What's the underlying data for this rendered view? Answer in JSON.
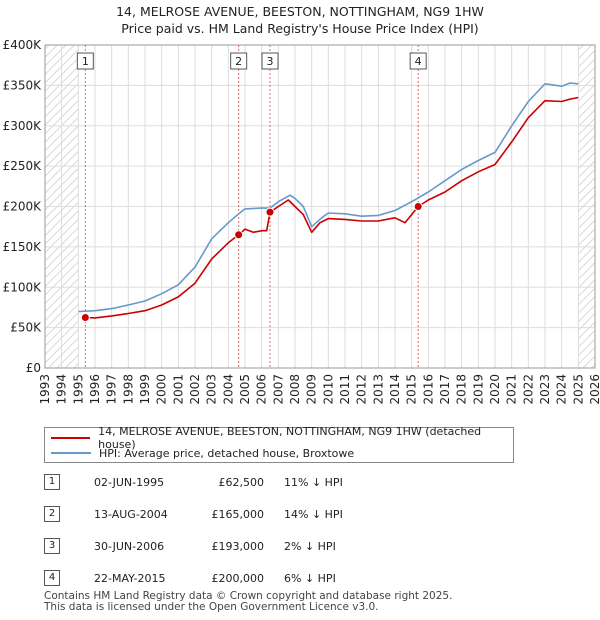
{
  "title_line1": "14, MELROSE AVENUE, BEESTON, NOTTINGHAM, NG9 1HW",
  "title_line2": "Price paid vs. HM Land Registry's House Price Index (HPI)",
  "colors": {
    "price": "#cc0000",
    "hpi": "#6699cc",
    "shade": "#dde6f2",
    "grid": "#dddddd",
    "marker_line": "#dd6666"
  },
  "chart_data": {
    "type": "line",
    "xlim": [
      1993,
      2026
    ],
    "ylim": [
      0,
      400000
    ],
    "x_ticks": [
      "1993",
      "1994",
      "1995",
      "1996",
      "1997",
      "1998",
      "1999",
      "2000",
      "2001",
      "2002",
      "2003",
      "2004",
      "2005",
      "2006",
      "2007",
      "2008",
      "2009",
      "2010",
      "2011",
      "2012",
      "2013",
      "2014",
      "2015",
      "2016",
      "2017",
      "2018",
      "2019",
      "2020",
      "2021",
      "2022",
      "2023",
      "2024",
      "2025",
      "2026"
    ],
    "y_ticks": [
      {
        "value": 0,
        "label": "£0"
      },
      {
        "value": 50000,
        "label": "£50K"
      },
      {
        "value": 100000,
        "label": "£100K"
      },
      {
        "value": 150000,
        "label": "£150K"
      },
      {
        "value": 200000,
        "label": "£200K"
      },
      {
        "value": 250000,
        "label": "£250K"
      },
      {
        "value": 300000,
        "label": "£300K"
      },
      {
        "value": 350000,
        "label": "£350K"
      },
      {
        "value": 400000,
        "label": "£400K"
      }
    ],
    "shaded_ranges": [
      [
        1993,
        1995.0
      ],
      [
        2025.0,
        2026
      ]
    ],
    "series": [
      {
        "name": "14, MELROSE AVENUE, BEESTON, NOTTINGHAM, NG9 1HW (detached house)",
        "color": "#cc0000",
        "points": [
          [
            1995.42,
            62500
          ],
          [
            1996,
            62000
          ],
          [
            1997,
            64500
          ],
          [
            1998,
            67500
          ],
          [
            1999,
            71000
          ],
          [
            2000,
            78000
          ],
          [
            2001,
            88000
          ],
          [
            2002,
            105000
          ],
          [
            2003,
            135000
          ],
          [
            2004,
            155000
          ],
          [
            2004.62,
            165000
          ],
          [
            2005,
            172000
          ],
          [
            2005.5,
            168000
          ],
          [
            2006,
            170000
          ],
          [
            2006.3,
            170000
          ],
          [
            2006.5,
            193000
          ],
          [
            2007,
            200000
          ],
          [
            2007.6,
            208000
          ],
          [
            2008,
            200000
          ],
          [
            2008.5,
            190000
          ],
          [
            2009,
            168000
          ],
          [
            2009.5,
            180000
          ],
          [
            2010,
            185000
          ],
          [
            2011,
            184000
          ],
          [
            2012,
            182000
          ],
          [
            2013,
            182000
          ],
          [
            2014,
            186000
          ],
          [
            2014.6,
            180000
          ],
          [
            2015.39,
            200000
          ],
          [
            2016,
            208000
          ],
          [
            2017,
            218000
          ],
          [
            2018,
            232000
          ],
          [
            2019,
            243000
          ],
          [
            2020,
            252000
          ],
          [
            2021,
            280000
          ],
          [
            2022,
            310000
          ],
          [
            2023,
            331000
          ],
          [
            2024,
            330000
          ],
          [
            2024.5,
            333000
          ],
          [
            2025,
            335000
          ]
        ]
      },
      {
        "name": "HPI: Average price, detached house, Broxtowe",
        "color": "#6699cc",
        "points": [
          [
            1995,
            70000
          ],
          [
            1996,
            71000
          ],
          [
            1997,
            73500
          ],
          [
            1998,
            78000
          ],
          [
            1999,
            83000
          ],
          [
            2000,
            92000
          ],
          [
            2001,
            103000
          ],
          [
            2002,
            125000
          ],
          [
            2003,
            160000
          ],
          [
            2004,
            180000
          ],
          [
            2004.62,
            191000
          ],
          [
            2005,
            197000
          ],
          [
            2006,
            198000
          ],
          [
            2006.5,
            198000
          ],
          [
            2007,
            206000
          ],
          [
            2007.7,
            214000
          ],
          [
            2008,
            210000
          ],
          [
            2008.5,
            200000
          ],
          [
            2009,
            175000
          ],
          [
            2009.6,
            186000
          ],
          [
            2010,
            192000
          ],
          [
            2011,
            191000
          ],
          [
            2012,
            188000
          ],
          [
            2013,
            189000
          ],
          [
            2014,
            195000
          ],
          [
            2015,
            206000
          ],
          [
            2016,
            218000
          ],
          [
            2017,
            232000
          ],
          [
            2018,
            246000
          ],
          [
            2019,
            257000
          ],
          [
            2020,
            267000
          ],
          [
            2021,
            300000
          ],
          [
            2022,
            330000
          ],
          [
            2023,
            352000
          ],
          [
            2024,
            349000
          ],
          [
            2024.5,
            353000
          ],
          [
            2025,
            352000
          ]
        ]
      }
    ],
    "transactions": [
      {
        "id": "1",
        "x": 1995.42,
        "price": 62500
      },
      {
        "id": "2",
        "x": 2004.62,
        "price": 165000
      },
      {
        "id": "3",
        "x": 2006.5,
        "price": 193000
      },
      {
        "id": "4",
        "x": 2015.39,
        "price": 200000
      }
    ]
  },
  "legend": {
    "price_label": "14, MELROSE AVENUE, BEESTON, NOTTINGHAM, NG9 1HW (detached house)",
    "hpi_label": "HPI: Average price, detached house, Broxtowe"
  },
  "transactions_table": [
    {
      "num": "1",
      "date": "02-JUN-1995",
      "price": "£62,500",
      "hpi": "11% ↓ HPI"
    },
    {
      "num": "2",
      "date": "13-AUG-2004",
      "price": "£165,000",
      "hpi": "14% ↓ HPI"
    },
    {
      "num": "3",
      "date": "30-JUN-2006",
      "price": "£193,000",
      "hpi": "2% ↓ HPI"
    },
    {
      "num": "4",
      "date": "22-MAY-2015",
      "price": "£200,000",
      "hpi": "6% ↓ HPI"
    }
  ],
  "footer": {
    "line1": "Contains HM Land Registry data © Crown copyright and database right 2025.",
    "line2": "This data is licensed under the Open Government Licence v3.0."
  }
}
